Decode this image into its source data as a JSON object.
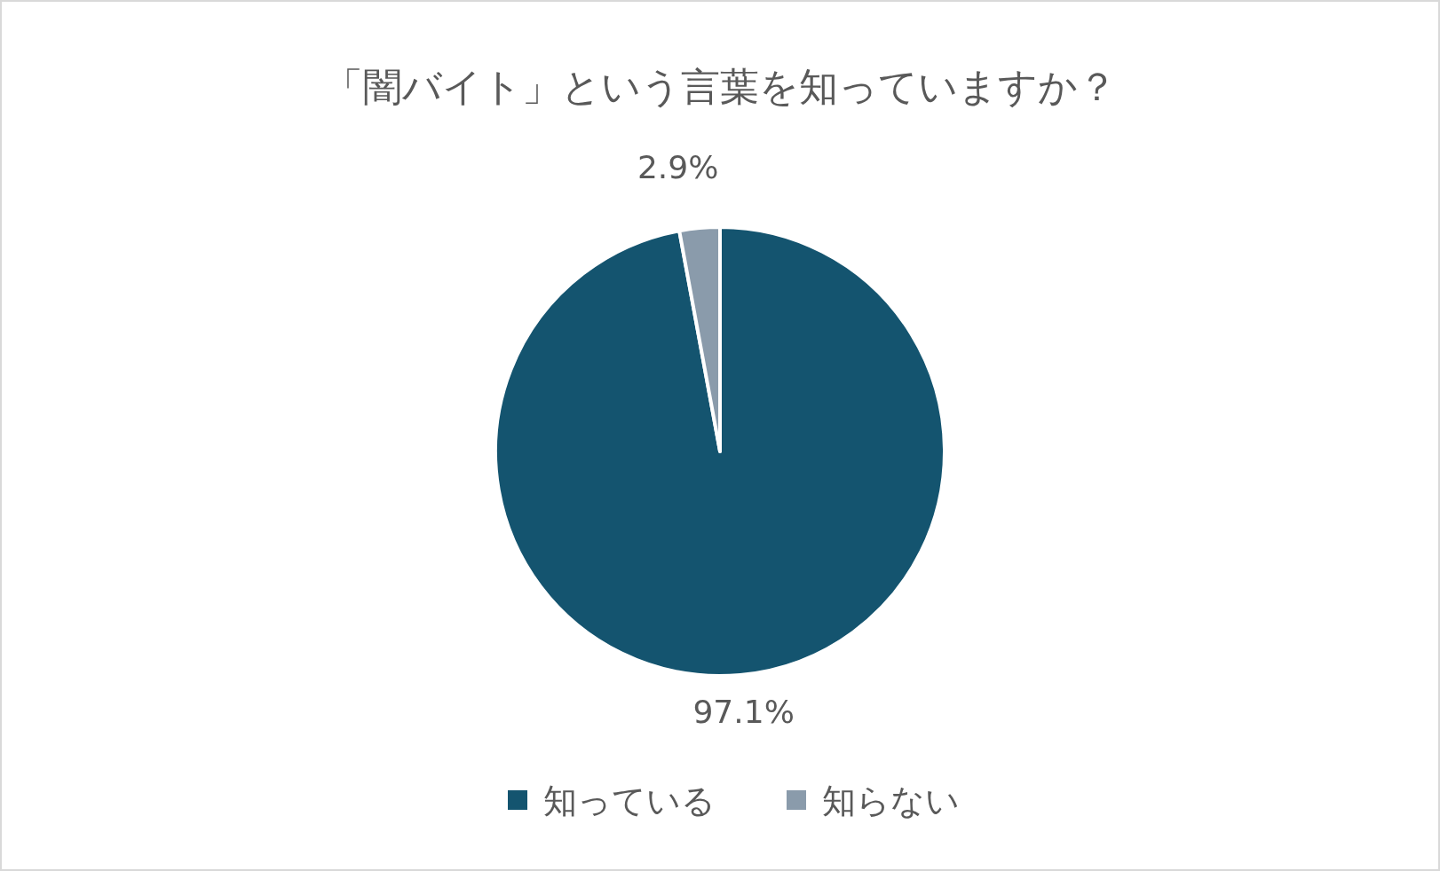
{
  "chart_data": {
    "type": "pie",
    "title": "「闇バイト」という言葉を知っていますか？",
    "categories": [
      "知っている",
      "知らない"
    ],
    "values": [
      97.1,
      2.9
    ],
    "colors": [
      "#14546f",
      "#8a9bab"
    ],
    "value_labels": [
      "97.1%",
      "2.9%"
    ],
    "legend": "bottom"
  }
}
